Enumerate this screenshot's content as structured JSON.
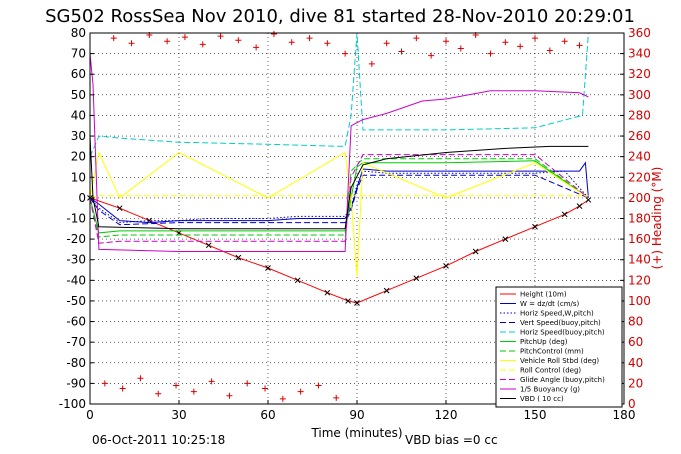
{
  "chart_data": {
    "type": "line",
    "title": "SG502 RossSea Nov 2010, dive 81 started 28-Nov-2010 20:29:01",
    "xlabel": "Time (minutes)",
    "ylabel": "",
    "ylabel_right": "(+) Heading (°M)",
    "xlim": [
      0,
      180
    ],
    "ylim": [
      -100,
      80
    ],
    "ylim_right": [
      0,
      360
    ],
    "x_ticks": [
      "0",
      "30",
      "60",
      "90",
      "120",
      "150",
      "180"
    ],
    "y_ticks": [
      "80",
      "70",
      "60",
      "50",
      "40",
      "30",
      "20",
      "10",
      "0",
      "-10",
      "-20",
      "-30",
      "-40",
      "-50",
      "-60",
      "-70",
      "-80",
      "-90",
      "-100"
    ],
    "y_ticks_right": [
      "360",
      "340",
      "320",
      "300",
      "280",
      "260",
      "240",
      "220",
      "200",
      "180",
      "160",
      "140",
      "120",
      "100",
      "80",
      "60",
      "40",
      "20",
      "0"
    ],
    "grid": true,
    "legend_position": "lower-right",
    "footer_left": "06-Oct-2011 10:25:18",
    "footer_right": "VBD bias =0 cc",
    "series": [
      {
        "name": "Height (10m)",
        "color": "#ff0000",
        "style": "solid",
        "x": [
          0,
          10,
          20,
          30,
          40,
          50,
          60,
          70,
          80,
          87,
          90,
          100,
          110,
          120,
          130,
          140,
          150,
          160,
          165,
          168
        ],
        "y": [
          0,
          -5,
          -11,
          -17,
          -23,
          -29,
          -34,
          -40,
          -46,
          -50,
          -51,
          -45,
          -39,
          -33,
          -26,
          -20,
          -14,
          -8,
          -4,
          -1
        ]
      },
      {
        "name": "W = dz/dt (cm/s)",
        "color": "#0000cc",
        "style": "solid",
        "x": [
          0,
          3,
          10,
          20,
          30,
          40,
          50,
          60,
          70,
          80,
          86,
          88,
          90,
          92,
          100,
          110,
          120,
          130,
          140,
          150,
          160,
          165,
          167,
          168
        ],
        "y": [
          0,
          -3,
          -11,
          -12,
          -11,
          -11,
          -11,
          -11,
          -10,
          -10,
          -10,
          -5,
          5,
          14,
          13,
          13,
          13,
          13,
          13,
          13,
          13,
          13,
          17,
          0
        ]
      },
      {
        "name": "Horiz Speed,W,pitch)",
        "color": "#0000cc",
        "style": "dotted",
        "x": [
          0,
          3,
          10,
          20,
          30,
          40,
          50,
          60,
          70,
          80,
          86,
          88,
          90,
          92,
          100,
          110,
          120,
          130,
          140,
          150,
          160,
          168
        ],
        "y": [
          0,
          -5,
          -12,
          -11,
          -11,
          -10,
          -10,
          -10,
          -9,
          -9,
          -9,
          -4,
          6,
          13,
          12,
          12,
          12,
          12,
          12,
          12,
          13,
          0
        ]
      },
      {
        "name": "Vert Speed(buoy,pitch)",
        "color": "#0000cc",
        "style": "dashed",
        "x": [
          0,
          3,
          10,
          30,
          60,
          86,
          88,
          90,
          92,
          120,
          150,
          168
        ],
        "y": [
          0,
          -6,
          -13,
          -12,
          -12,
          -12,
          -6,
          4,
          11,
          11,
          11,
          0
        ]
      },
      {
        "name": "Horiz Speed(buoy,pitch)",
        "color": "#00cccc",
        "style": "dashed",
        "x": [
          0,
          3,
          10,
          30,
          60,
          86,
          88,
          90,
          92,
          120,
          150,
          166,
          168
        ],
        "y": [
          20,
          30,
          29,
          27,
          26,
          25,
          40,
          80,
          33,
          33,
          34,
          40,
          80
        ]
      },
      {
        "name": "PitchUp (deg)",
        "color": "#00cc00",
        "style": "solid",
        "x": [
          0,
          3,
          10,
          30,
          60,
          86,
          88,
          90,
          92,
          120,
          150,
          168
        ],
        "y": [
          0,
          -17,
          -16,
          -16,
          -16,
          -16,
          0,
          15,
          17,
          17,
          18,
          0
        ]
      },
      {
        "name": "PitchControl (mm)",
        "color": "#00cc00",
        "style": "dashed",
        "x": [
          0,
          3,
          10,
          30,
          60,
          86,
          88,
          92,
          120,
          150,
          168
        ],
        "y": [
          0,
          -19,
          -18,
          -18,
          -18,
          -18,
          13,
          19,
          19,
          19,
          0
        ]
      },
      {
        "name": "Vehicle Roll Stbd (deg)",
        "color": "#ffff00",
        "style": "solid",
        "x": [
          0,
          3,
          10,
          30,
          60,
          86,
          88,
          90,
          92,
          120,
          150,
          168
        ],
        "y": [
          0,
          22,
          0,
          22,
          0,
          22,
          0,
          -38,
          17,
          0,
          17,
          0
        ]
      },
      {
        "name": "Roll Control (deg)",
        "color": "#ffff00",
        "style": "dashed",
        "x": [
          0,
          3,
          10,
          30,
          60,
          86,
          88,
          92,
          120,
          150,
          168
        ],
        "y": [
          0,
          1,
          1,
          1,
          1,
          1,
          1,
          1,
          1,
          1,
          1
        ]
      },
      {
        "name": "Glide Angle (buoy,pitch)",
        "color": "#cc00cc",
        "style": "dashed",
        "x": [
          0,
          3,
          10,
          30,
          60,
          86,
          88,
          92,
          120,
          150,
          168
        ],
        "y": [
          0,
          -22,
          -21,
          -21,
          -21,
          -21,
          10,
          21,
          21,
          21,
          0
        ]
      },
      {
        "name": "1/5 Buoyancy (g)",
        "color": "#cc00cc",
        "style": "solid",
        "x": [
          0,
          1,
          3,
          30,
          60,
          86,
          88,
          92,
          100,
          112,
          120,
          135,
          150,
          165,
          168
        ],
        "y": [
          70,
          55,
          -25,
          -26,
          -26,
          -26,
          35,
          38,
          41,
          47,
          48,
          52,
          52,
          51,
          49
        ]
      },
      {
        "name": "VBD ( 10 cc)",
        "color": "#000000",
        "style": "solid",
        "x": [
          0,
          1,
          3,
          30,
          60,
          86,
          88,
          92,
          100,
          120,
          140,
          155,
          168
        ],
        "y": [
          30,
          0,
          -14,
          -15,
          -15,
          -15,
          5,
          16,
          19,
          22,
          24,
          25,
          25
        ]
      },
      {
        "name": "Heading",
        "color": "#dd0000",
        "style": "plus-markers",
        "axis": "right",
        "x": [
          5,
          8,
          11,
          14,
          17,
          20,
          23,
          26,
          29,
          32,
          35,
          38,
          41,
          44,
          47,
          50,
          53,
          56,
          59,
          62,
          65,
          68,
          71,
          74,
          77,
          80,
          83,
          86,
          95,
          100,
          105,
          110,
          115,
          120,
          125,
          130,
          135,
          140,
          145,
          150,
          155,
          160,
          165
        ],
        "y": [
          20,
          355,
          15,
          350,
          25,
          358,
          10,
          352,
          18,
          356,
          12,
          349,
          22,
          357,
          8,
          353,
          20,
          346,
          15,
          359,
          5,
          351,
          12,
          355,
          18,
          350,
          6,
          340,
          330,
          350,
          342,
          355,
          338,
          352,
          345,
          358,
          340,
          351,
          347,
          355,
          343,
          352,
          348
        ]
      }
    ]
  }
}
